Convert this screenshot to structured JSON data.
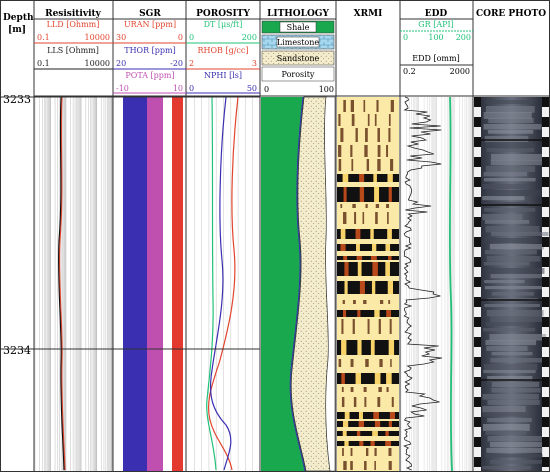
{
  "depth": {
    "title": "Depth",
    "unit": "[m]",
    "ticks": [
      "3233",
      "3234"
    ]
  },
  "tracks": {
    "resistivity": {
      "title": "Resisitivity",
      "curves": [
        {
          "name": "LLD [Ohmm]",
          "min": "0.1",
          "max": "10000",
          "color": "#e2452e"
        },
        {
          "name": "LLS [Ohmm]",
          "min": "0.1",
          "max": "10000",
          "color": "#222222"
        }
      ]
    },
    "sgr": {
      "title": "SGR",
      "curves": [
        {
          "name": "URAN [ppm]",
          "min": "30",
          "max": "0",
          "color": "#e2452e"
        },
        {
          "name": "THOR [ppm]",
          "min": "20",
          "max": "-20",
          "color": "#3a2fb0"
        },
        {
          "name": "POTA [ppm]",
          "min": "-10",
          "max": "10",
          "color": "#c050b0"
        }
      ]
    },
    "porosity": {
      "title": "POROSITY",
      "curves": [
        {
          "name": "DT [μs/ft]",
          "min": "0",
          "max": "200",
          "color": "#22c178"
        },
        {
          "name": "RHOB [g/cc]",
          "min": "2",
          "max": "3",
          "color": "#e2452e"
        },
        {
          "name": "NPHI [ls]",
          "min": "0",
          "max": "50",
          "color": "#3a2fb0"
        }
      ]
    },
    "lithology": {
      "title": "LITHOLOGY",
      "legend": [
        "Shale",
        "Limestone",
        "Sandstone",
        "Porosity"
      ],
      "scale_min": "0",
      "scale_max": "100"
    },
    "xrmi": {
      "title": "XRMI"
    },
    "edd": {
      "title": "EDD",
      "curves": [
        {
          "name": "GR [API]",
          "ticks": [
            "0",
            "100",
            "200"
          ],
          "color": "#22c178"
        },
        {
          "name": "EDD [omm]",
          "min": "0.2",
          "max": "2000",
          "color": "#222222"
        }
      ]
    },
    "core": {
      "title": "CORE PHOTO"
    }
  },
  "colors": {
    "shale": "#1aa84f",
    "limestone": "#a8d8ee",
    "sandstone": "#f3eccd",
    "sgr_thor": "#3a2fb0",
    "sgr_pota": "#c050b0",
    "sgr_uran": "#e23a2e"
  }
}
